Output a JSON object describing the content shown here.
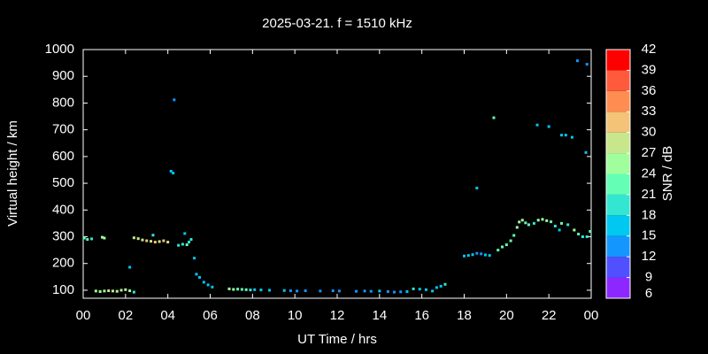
{
  "chart_data": {
    "type": "scatter",
    "title": "2025-03-21. f = 1510 kHz",
    "xlabel": "UT Time / hrs",
    "ylabel": "Virtual height / km",
    "colorbar_label": "SNR / dB",
    "xlim": [
      0,
      24
    ],
    "ylim": [
      70,
      1000
    ],
    "xticks": [
      {
        "value": 0,
        "label": "00"
      },
      {
        "value": 2,
        "label": "02"
      },
      {
        "value": 4,
        "label": "04"
      },
      {
        "value": 6,
        "label": "06"
      },
      {
        "value": 8,
        "label": "08"
      },
      10,
      12,
      14,
      16,
      18,
      20,
      22,
      {
        "value": 24,
        "label": "00"
      }
    ],
    "yticks": [
      100,
      200,
      300,
      400,
      500,
      600,
      700,
      800,
      900,
      1000
    ],
    "clim": [
      6,
      42
    ],
    "cticks": [
      6,
      9,
      12,
      15,
      18,
      21,
      24,
      27,
      30,
      33,
      36,
      39,
      42
    ],
    "colors": [
      "#8c28ff",
      "#5050ff",
      "#1496ff",
      "#00c8f0",
      "#32e6d2",
      "#64ffb4",
      "#a0ff9c",
      "#c8e68c",
      "#f5c378",
      "#ff8c50",
      "#ff5a3c",
      "#ff0000"
    ],
    "x": [
      0.05,
      0.2,
      0.4,
      0.9,
      1.0,
      0.6,
      0.8,
      1.0,
      1.2,
      1.4,
      1.6,
      1.8,
      2.0,
      2.2,
      2.4,
      2.2,
      2.4,
      2.6,
      2.8,
      3.0,
      3.2,
      3.4,
      3.6,
      3.8,
      4.0,
      3.3,
      4.15,
      4.25,
      4.3,
      4.5,
      4.7,
      4.8,
      4.9,
      5.0,
      5.1,
      5.25,
      5.35,
      5.5,
      5.7,
      5.9,
      6.1,
      6.9,
      7.1,
      7.3,
      7.5,
      7.7,
      7.9,
      8.1,
      8.4,
      8.8,
      9.5,
      9.8,
      10.1,
      10.5,
      11.2,
      11.8,
      12.1,
      12.9,
      13.3,
      13.6,
      14.0,
      14.4,
      14.7,
      15.0,
      15.3,
      15.6,
      15.9,
      16.2,
      16.5,
      16.7,
      16.9,
      17.1,
      18.0,
      18.2,
      18.4,
      18.6,
      18.8,
      19.0,
      19.2,
      18.6,
      19.4,
      19.6,
      19.8,
      20.0,
      20.2,
      20.35,
      20.5,
      20.6,
      20.75,
      20.9,
      21.05,
      21.3,
      21.5,
      21.7,
      21.9,
      22.1,
      22.3,
      22.5,
      22.6,
      22.9,
      23.2,
      23.4,
      23.6,
      23.8,
      23.95,
      21.45,
      22.0,
      22.6,
      22.8,
      23.1,
      23.35,
      23.8,
      23.75
    ],
    "values": [
      295,
      290,
      292,
      298,
      295,
      97,
      95,
      97,
      98,
      97,
      96,
      100,
      102,
      98,
      93,
      186,
      296,
      293,
      288,
      285,
      283,
      280,
      282,
      285,
      280,
      306,
      545,
      538,
      812,
      268,
      272,
      312,
      270,
      280,
      290,
      220,
      160,
      148,
      130,
      120,
      112,
      105,
      103,
      104,
      103,
      102,
      101,
      102,
      101,
      100,
      99,
      98,
      97,
      98,
      97,
      98,
      97,
      96,
      97,
      96,
      97,
      95,
      93,
      94,
      95,
      105,
      104,
      102,
      97,
      110,
      115,
      122,
      228,
      230,
      233,
      238,
      236,
      232,
      230,
      482,
      745,
      250,
      262,
      270,
      285,
      305,
      335,
      355,
      362,
      352,
      345,
      350,
      362,
      365,
      360,
      356,
      340,
      325,
      350,
      345,
      325,
      310,
      300,
      300,
      320,
      718,
      712,
      680,
      680,
      672,
      958,
      945,
      615
    ],
    "snr": [
      21,
      21,
      18,
      24,
      24,
      24,
      24,
      24,
      27,
      27,
      24,
      27,
      24,
      24,
      18,
      15,
      27,
      27,
      27,
      30,
      27,
      30,
      27,
      30,
      27,
      18,
      15,
      15,
      12,
      18,
      18,
      15,
      21,
      18,
      18,
      15,
      15,
      15,
      15,
      15,
      15,
      24,
      24,
      21,
      21,
      21,
      18,
      15,
      15,
      15,
      15,
      12,
      12,
      12,
      12,
      12,
      12,
      12,
      12,
      12,
      15,
      12,
      12,
      12,
      15,
      18,
      15,
      15,
      15,
      15,
      15,
      18,
      15,
      15,
      15,
      12,
      12,
      15,
      15,
      15,
      21,
      21,
      21,
      21,
      21,
      21,
      24,
      24,
      24,
      21,
      21,
      18,
      24,
      24,
      24,
      21,
      18,
      15,
      21,
      18,
      24,
      21,
      18,
      18,
      21,
      15,
      15,
      15,
      15,
      15,
      12,
      12,
      15
    ]
  }
}
